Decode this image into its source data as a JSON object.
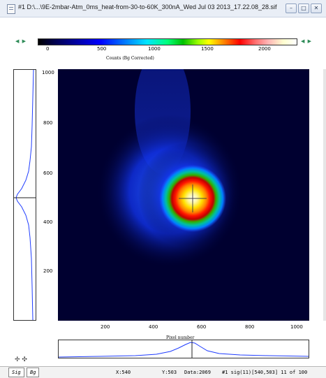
{
  "window": {
    "title": "#1 D:\\...\\9E-2mbar-Atm_0ms_heat-from-30-to-60K_300nA_Wed Jul 03 2013_17.22.08_28.sif",
    "minimize_label": "–",
    "maximize_label": "□",
    "close_label": "✕"
  },
  "colorbar": {
    "arrows_left": "◀ ▶",
    "arrows_right": "◀ ▶",
    "ticks": [
      "0",
      "500",
      "1000",
      "1500",
      "2000"
    ],
    "title": "Counts (Bg Corrected)"
  },
  "image": {
    "y_ticks": [
      "1000",
      "800",
      "600",
      "400",
      "200"
    ],
    "x_ticks": [
      "200",
      "400",
      "600",
      "800",
      "1000"
    ],
    "x_title": "Pixel number",
    "colors": {
      "background": "#000030",
      "peak": "#ffffff"
    }
  },
  "tools": {
    "move_icons": "✢ ✣"
  },
  "status": {
    "tab_sig": "Sig",
    "tab_bg": "Bg",
    "x_readout": "X:540",
    "y_readout": "Y:503",
    "data_readout": "Data:2069",
    "frame_info": "#1 sig(11)[540,503] 11 of 100"
  }
}
